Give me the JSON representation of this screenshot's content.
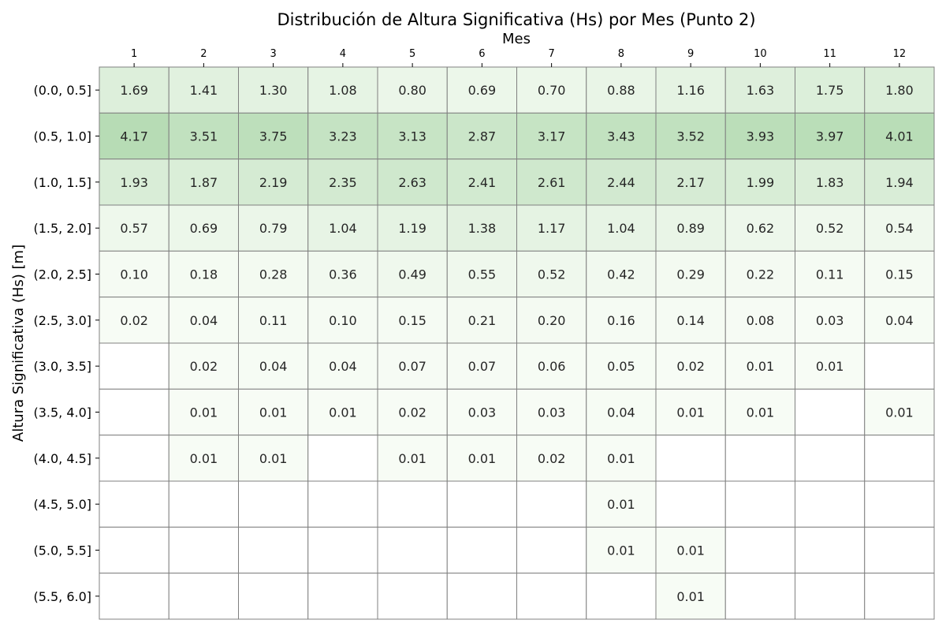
{
  "chart_data": {
    "type": "heatmap",
    "title": "Distribución de Altura Significativa (Hs) por Mes (Punto 2)",
    "xlabel": "Mes",
    "ylabel": "Altura Significativa (Hs) [m]",
    "x_position": "top",
    "columns": [
      "1",
      "2",
      "3",
      "4",
      "5",
      "6",
      "7",
      "8",
      "9",
      "10",
      "11",
      "12"
    ],
    "rows": [
      "(0.0, 0.5]",
      "(0.5, 1.0]",
      "(1.0, 1.5]",
      "(1.5, 2.0]",
      "(2.0, 2.5]",
      "(2.5, 3.0]",
      "(3.0, 3.5]",
      "(3.5, 4.0]",
      "(4.0, 4.5]",
      "(4.5, 5.0]",
      "(5.0, 5.5]",
      "(5.5, 6.0]"
    ],
    "values": [
      [
        1.69,
        1.41,
        1.3,
        1.08,
        0.8,
        0.69,
        0.7,
        0.88,
        1.16,
        1.63,
        1.75,
        1.8
      ],
      [
        4.17,
        3.51,
        3.75,
        3.23,
        3.13,
        2.87,
        3.17,
        3.43,
        3.52,
        3.93,
        3.97,
        4.01
      ],
      [
        1.93,
        1.87,
        2.19,
        2.35,
        2.63,
        2.41,
        2.61,
        2.44,
        2.17,
        1.99,
        1.83,
        1.94
      ],
      [
        0.57,
        0.69,
        0.79,
        1.04,
        1.19,
        1.38,
        1.17,
        1.04,
        0.89,
        0.62,
        0.52,
        0.54
      ],
      [
        0.1,
        0.18,
        0.28,
        0.36,
        0.49,
        0.55,
        0.52,
        0.42,
        0.29,
        0.22,
        0.11,
        0.15
      ],
      [
        0.02,
        0.04,
        0.11,
        0.1,
        0.15,
        0.21,
        0.2,
        0.16,
        0.14,
        0.08,
        0.03,
        0.04
      ],
      [
        null,
        0.02,
        0.04,
        0.04,
        0.07,
        0.07,
        0.06,
        0.05,
        0.02,
        0.01,
        0.01,
        null
      ],
      [
        null,
        0.01,
        0.01,
        0.01,
        0.02,
        0.03,
        0.03,
        0.04,
        0.01,
        0.01,
        null,
        0.01
      ],
      [
        null,
        0.01,
        0.01,
        null,
        0.01,
        0.01,
        0.02,
        0.01,
        null,
        null,
        null,
        null
      ],
      [
        null,
        null,
        null,
        null,
        null,
        null,
        null,
        0.01,
        null,
        null,
        null,
        null
      ],
      [
        null,
        null,
        null,
        null,
        null,
        null,
        null,
        0.01,
        0.01,
        null,
        null,
        null
      ],
      [
        null,
        null,
        null,
        null,
        null,
        null,
        null,
        null,
        0.01,
        null,
        null,
        null
      ]
    ],
    "colormap": {
      "low": "#f7fcf5",
      "high": "#b7dcb5"
    },
    "value_range": [
      0,
      4.17
    ],
    "grid_color": "#808080",
    "legend": "none",
    "colorbar": false
  }
}
